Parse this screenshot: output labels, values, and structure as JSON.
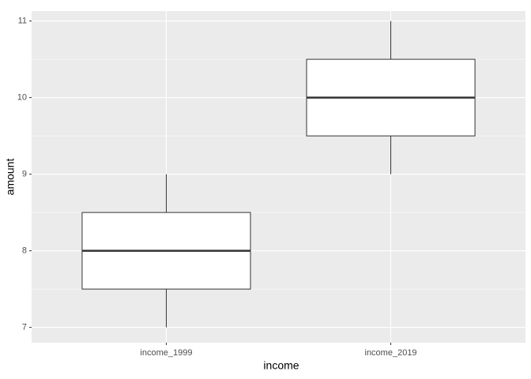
{
  "chart_data": {
    "type": "box",
    "x_label": "income",
    "y_label": "amount",
    "categories": [
      "income_1999",
      "income_2019"
    ],
    "boxes": [
      {
        "min": 7,
        "q1": 7.5,
        "median": 8,
        "q3": 8.5,
        "max": 9
      },
      {
        "min": 9,
        "q1": 9.5,
        "median": 10,
        "q3": 10.5,
        "max": 11
      }
    ],
    "ylim": [
      6.8,
      11.13
    ],
    "yticks": [
      7,
      8,
      9,
      10,
      11
    ],
    "grid": true,
    "panel_color": "#ebebeb",
    "box_fill": "#ffffff",
    "box_stroke": "#333333"
  }
}
